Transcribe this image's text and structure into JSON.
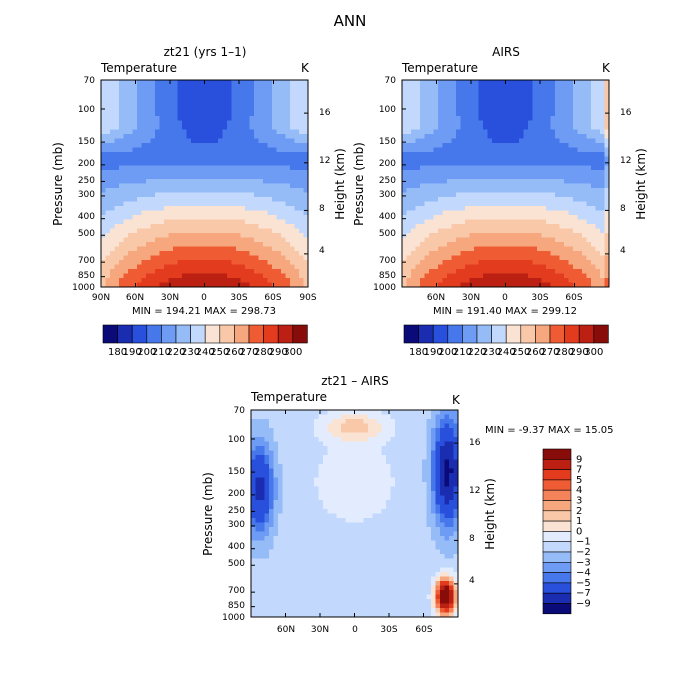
{
  "figure": {
    "title": "ANN"
  },
  "colors": {
    "cool": [
      "#0a0a78",
      "#1a2cb0",
      "#2850dc",
      "#4678ec",
      "#6e9cf4",
      "#96bcf8",
      "#c2d8fc",
      "#e2ecfe"
    ],
    "warm": [
      "#fbe3d3",
      "#f9c8a8",
      "#f7a77e",
      "#f4835a",
      "#ef5c34",
      "#e23b1e",
      "#bb2012",
      "#880c0a"
    ]
  },
  "chart_data": [
    {
      "id": "model",
      "type": "heatmap",
      "title": "zt21 (yrs 1–1)",
      "variable_label": "Temperature",
      "units_label": "K",
      "ylabel": "Pressure (mb)",
      "y2label": "Height (km)",
      "xticks": [
        "90N",
        "60N",
        "30N",
        "0",
        "30S",
        "60S",
        "90S"
      ],
      "yticks": [
        "70",
        "100",
        "150",
        "200",
        "250",
        "300",
        "400",
        "500",
        "700",
        "850",
        "1000"
      ],
      "y2ticks": [
        "4",
        "8",
        "12",
        "16"
      ],
      "stats": "MIN = 194.21   MAX = 298.73",
      "min": 194.21,
      "max": 298.73,
      "colorbar_labels": [
        "180",
        "190",
        "200",
        "210",
        "220",
        "230",
        "240",
        "250",
        "260",
        "270",
        "280",
        "290",
        "300"
      ],
      "colorbar_levels": [
        180,
        190,
        200,
        210,
        220,
        230,
        240,
        250,
        260,
        270,
        280,
        290,
        300
      ]
    },
    {
      "id": "obs",
      "type": "heatmap",
      "title": "AIRS",
      "variable_label": "Temperature",
      "units_label": "K",
      "ylabel": "Pressure (mb)",
      "y2label": "Height (km)",
      "xticks": [
        "60N",
        "30N",
        "0",
        "30S",
        "60S"
      ],
      "yticks": [
        "70",
        "100",
        "150",
        "200",
        "250",
        "300",
        "400",
        "500",
        "700",
        "850",
        "1000"
      ],
      "y2ticks": [
        "4",
        "8",
        "12",
        "16"
      ],
      "stats": "MIN = 191.40   MAX = 299.12",
      "min": 191.4,
      "max": 299.12,
      "colorbar_labels": [
        "180",
        "190",
        "200",
        "210",
        "220",
        "230",
        "240",
        "250",
        "260",
        "270",
        "280",
        "290",
        "300"
      ],
      "colorbar_levels": [
        180,
        190,
        200,
        210,
        220,
        230,
        240,
        250,
        260,
        270,
        280,
        290,
        300
      ]
    },
    {
      "id": "diff",
      "type": "heatmap",
      "title": "zt21 – AIRS",
      "variable_label": "Temperature",
      "units_label": "K",
      "ylabel": "Pressure (mb)",
      "y2label": "Height (km)",
      "xticks": [
        "60N",
        "30N",
        "0",
        "30S",
        "60S"
      ],
      "yticks": [
        "70",
        "100",
        "150",
        "200",
        "250",
        "300",
        "400",
        "500",
        "700",
        "850",
        "1000"
      ],
      "y2ticks": [
        "4",
        "8",
        "12",
        "16"
      ],
      "stats": "MIN =  -9.37   MAX =  15.05",
      "min": -9.37,
      "max": 15.05,
      "colorbar_labels": [
        "9",
        "7",
        "5",
        "4",
        "3",
        "2",
        "1",
        "0",
        "−1",
        "−2",
        "−3",
        "−4",
        "−5",
        "−7",
        "−9"
      ],
      "colorbar_levels": [
        9,
        7,
        5,
        4,
        3,
        2,
        1,
        0,
        -1,
        -2,
        -3,
        -4,
        -5,
        -7,
        -9
      ]
    }
  ]
}
